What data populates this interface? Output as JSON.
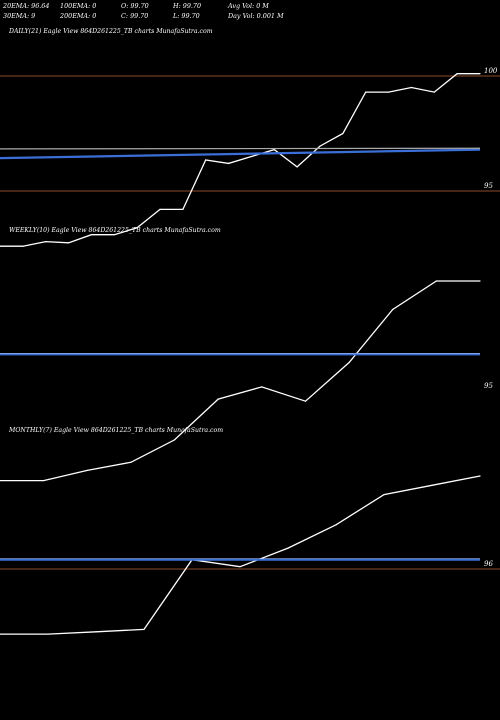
{
  "header": {
    "row1": [
      {
        "text": "20EMA: 96.64"
      },
      {
        "text": "100EMA: 0"
      },
      {
        "text": "O: 99.70"
      },
      {
        "text": "H: 99.70"
      },
      {
        "text": "Avg Vol: 0  M"
      }
    ],
    "row2": [
      {
        "text": "30EMA: 9"
      },
      {
        "text": "200EMA: 0"
      },
      {
        "text": "C: 99.70"
      },
      {
        "text": "L: 99.70"
      },
      {
        "text": "Day Vol: 0.001 M"
      }
    ]
  },
  "colors": {
    "background": "#000000",
    "price_line": "#ffffff",
    "ema_short": "#3b6fd8",
    "ema_long": "#aaaaaa",
    "ref_line": "#8b4a2b"
  },
  "chart_data": [
    {
      "type": "line",
      "title": "DAILY(21) Eagle  View  864D261225_TB charts MunafaSutra.com",
      "yticks": [
        {
          "label": "100",
          "value": 100
        },
        {
          "label": "95",
          "value": 95
        }
      ],
      "series": [
        {
          "role": "price",
          "values": [
            92.6,
            92.6,
            92.8,
            92.75,
            93.1,
            93.1,
            93.4,
            94.2,
            94.2,
            96.35,
            96.2,
            96.5,
            96.8,
            96.05,
            96.95,
            97.5,
            99.3,
            99.3,
            99.5,
            99.3,
            100.1,
            100.1
          ]
        },
        {
          "role": "ema20",
          "values": [
            96.43,
            96.8
          ]
        },
        {
          "role": "ema30",
          "values": [
            96.83,
            96.86
          ]
        }
      ]
    },
    {
      "type": "line",
      "title": "WEEKLY(10) Eagle  View  864D261225_TB charts MunafaSutra.com",
      "yticks": [
        {
          "label": "95",
          "value": 95
        }
      ],
      "series": [
        {
          "role": "price",
          "values": [
            90.6,
            90.6,
            91.1,
            91.5,
            92.6,
            94.6,
            95.2,
            94.5,
            96.4,
            99.0,
            100.4,
            100.4
          ]
        },
        {
          "role": "ema",
          "values": [
            96.8,
            96.8
          ]
        }
      ]
    },
    {
      "type": "line",
      "title": "MONTHLY(7) Eagle  View  864D261225_TB charts MunafaSutra.com",
      "yticks": [
        {
          "label": "96",
          "value": 96
        }
      ],
      "series": [
        {
          "role": "price",
          "values": [
            93.2,
            93.2,
            93.3,
            93.4,
            96.4,
            96.1,
            96.9,
            97.9,
            99.2,
            99.6,
            100.0
          ]
        },
        {
          "role": "ema",
          "values": [
            96.4,
            96.4
          ]
        }
      ]
    }
  ]
}
